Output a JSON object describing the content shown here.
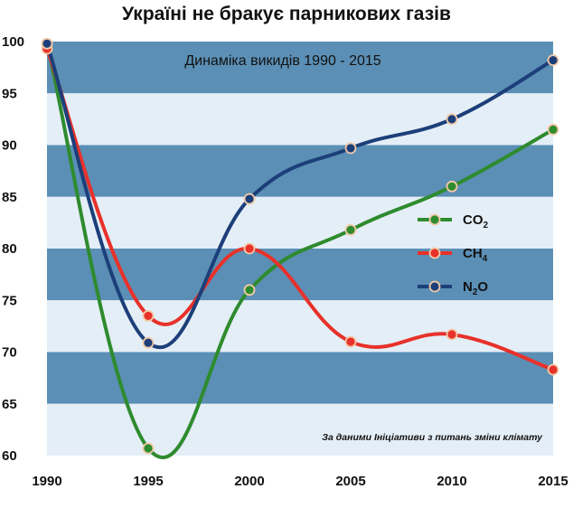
{
  "chart_data": {
    "type": "line",
    "title": "Україні не бракує парникових газів",
    "subtitle": "Динаміка викидів 1990 - 2015",
    "source_note": "За даними Ініціативи з питань зміни клімату",
    "x": [
      1990,
      1995,
      2000,
      2005,
      2010,
      2015
    ],
    "x_ticks": [
      "1990",
      "1995",
      "2000",
      "2005",
      "2010",
      "2015"
    ],
    "y_ticks": [
      "60",
      "65",
      "70",
      "75",
      "80",
      "85",
      "90",
      "95",
      "100"
    ],
    "ylim": [
      60,
      100
    ],
    "xlim": [
      1990,
      2015
    ],
    "grid": "horizontal bands",
    "legend_position": "right",
    "series": [
      {
        "name": "CO2",
        "name_main": "CO",
        "name_sub": "2",
        "color": "#2e8b2e",
        "values": [
          99.8,
          60.7,
          76.0,
          81.8,
          86.0,
          91.5
        ]
      },
      {
        "name": "CH4",
        "name_main": "CH",
        "name_sub": "4",
        "color": "#e8312a",
        "values": [
          99.3,
          73.5,
          80.0,
          71.0,
          71.7,
          68.3
        ]
      },
      {
        "name": "N2O",
        "name_main": "N",
        "name_sub": "2",
        "name_suffix": "O",
        "color": "#1c3f7a",
        "values": [
          99.8,
          70.9,
          84.8,
          89.7,
          92.5,
          98.2
        ]
      }
    ]
  },
  "colors": {
    "band_dark": "#5b8fb5",
    "band_light": "#e4eef6",
    "background": "#ffffff"
  }
}
